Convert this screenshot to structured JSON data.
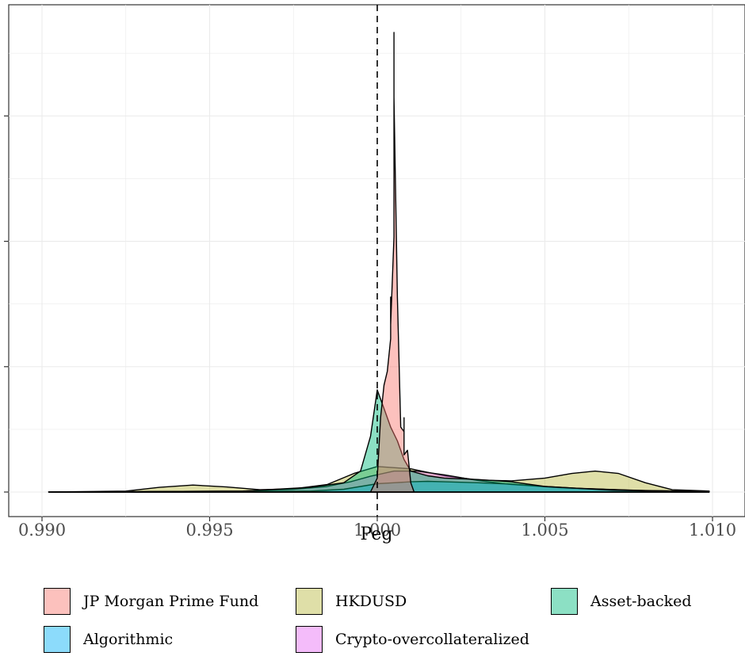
{
  "chart_data": {
    "type": "area",
    "subtype": "density",
    "xlabel": "Peg",
    "ylabel": "",
    "xlim": [
      0.99,
      1.01
    ],
    "ylim": [
      0,
      1
    ],
    "x_ticks": [
      "0.990",
      "0.995",
      "1.000",
      "1.005",
      "1.010"
    ],
    "y_ticks_labeled": false,
    "reference_line": {
      "x": 1.0,
      "style": "dashed"
    },
    "grid": true,
    "legend_position": "bottom",
    "series": [
      {
        "name": "JP Morgan Prime Fund",
        "color": "#F8766D",
        "points": [
          [
            0.9998,
            0
          ],
          [
            1.0,
            0.03
          ],
          [
            1.0001,
            0.16
          ],
          [
            1.0002,
            0.23
          ],
          [
            1.0003,
            0.26
          ],
          [
            1.0004,
            0.33
          ],
          [
            1.0004,
            0.42
          ],
          [
            1.0004,
            0.36
          ],
          [
            1.0005,
            0.55
          ],
          [
            1.0005,
            0.91
          ],
          [
            1.0005,
            0.99
          ],
          [
            1.0005,
            0.85
          ],
          [
            1.0006,
            0.42
          ],
          [
            1.0007,
            0.14
          ],
          [
            1.0008,
            0.13
          ],
          [
            1.0008,
            0.16
          ],
          [
            1.0008,
            0.08
          ],
          [
            1.0009,
            0.09
          ],
          [
            1.001,
            0.02
          ],
          [
            1.0011,
            0
          ]
        ]
      },
      {
        "name": "HKDUSD",
        "color": "#B7B83F",
        "points": [
          [
            0.9902,
            0
          ],
          [
            0.9925,
            0.002
          ],
          [
            0.9935,
            0.01
          ],
          [
            0.9945,
            0.015
          ],
          [
            0.9955,
            0.011
          ],
          [
            0.9965,
            0.005
          ],
          [
            0.9975,
            0.007
          ],
          [
            0.9985,
            0.016
          ],
          [
            0.9993,
            0.04
          ],
          [
            1.0,
            0.055
          ],
          [
            1.001,
            0.05
          ],
          [
            1.002,
            0.035
          ],
          [
            1.003,
            0.026
          ],
          [
            1.004,
            0.024
          ],
          [
            1.005,
            0.03
          ],
          [
            1.0058,
            0.04
          ],
          [
            1.0065,
            0.045
          ],
          [
            1.0072,
            0.04
          ],
          [
            1.008,
            0.02
          ],
          [
            1.0088,
            0.005
          ],
          [
            1.0099,
            0.002
          ]
        ]
      },
      {
        "name": "Asset-backed",
        "color": "#00BA7D",
        "points": [
          [
            0.9902,
            0
          ],
          [
            0.996,
            0.002
          ],
          [
            0.998,
            0.01
          ],
          [
            0.999,
            0.02
          ],
          [
            0.9995,
            0.045
          ],
          [
            0.9998,
            0.12
          ],
          [
            1.0,
            0.22
          ],
          [
            1.0002,
            0.18
          ],
          [
            1.0004,
            0.14
          ],
          [
            1.0006,
            0.11
          ],
          [
            1.0008,
            0.07
          ],
          [
            1.001,
            0.045
          ],
          [
            1.0015,
            0.035
          ],
          [
            1.002,
            0.03
          ],
          [
            1.003,
            0.027
          ],
          [
            1.004,
            0.022
          ],
          [
            1.005,
            0.012
          ],
          [
            1.007,
            0.004
          ],
          [
            1.0099,
            0
          ]
        ]
      },
      {
        "name": "Algorithmic",
        "color": "#00B0F6",
        "points": [
          [
            0.9902,
            0
          ],
          [
            0.996,
            0.001
          ],
          [
            0.998,
            0.002
          ],
          [
            0.999,
            0.006
          ],
          [
            0.9995,
            0.012
          ],
          [
            1.0,
            0.018
          ],
          [
            1.0005,
            0.02
          ],
          [
            1.001,
            0.022
          ],
          [
            1.0015,
            0.023
          ],
          [
            1.002,
            0.022
          ],
          [
            1.003,
            0.02
          ],
          [
            1.004,
            0.017
          ],
          [
            1.005,
            0.012
          ],
          [
            1.006,
            0.008
          ],
          [
            1.008,
            0.003
          ],
          [
            1.0099,
            0.001
          ]
        ]
      },
      {
        "name": "Crypto-overcollateralized",
        "color": "#E76BF3",
        "points": [
          [
            0.9902,
            0
          ],
          [
            0.996,
            0.002
          ],
          [
            0.9975,
            0.006
          ],
          [
            0.9985,
            0.012
          ],
          [
            0.9992,
            0.022
          ],
          [
            0.9998,
            0.034
          ],
          [
            1.0005,
            0.045
          ],
          [
            1.0012,
            0.045
          ],
          [
            1.002,
            0.037
          ],
          [
            1.003,
            0.025
          ],
          [
            1.004,
            0.016
          ],
          [
            1.0055,
            0.009
          ],
          [
            1.0075,
            0.004
          ],
          [
            1.0099,
            0.001
          ]
        ]
      }
    ]
  },
  "legend": {
    "items": [
      {
        "label": "JP Morgan Prime Fund",
        "color": "#F8766D"
      },
      {
        "label": "HKDUSD",
        "color": "#B7B83F"
      },
      {
        "label": "Asset-backed",
        "color": "#00BA7D"
      },
      {
        "label": "Algorithmic",
        "color": "#00B0F6"
      },
      {
        "label": "Crypto-overcollateralized",
        "color": "#E76BF3"
      }
    ]
  }
}
